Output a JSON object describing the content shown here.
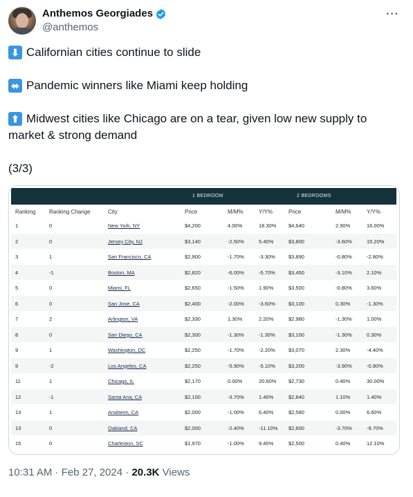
{
  "author": {
    "name": "Anthemos Georgiades",
    "handle": "@anthemos",
    "verified_color": "#1d9bf0"
  },
  "more_label": "···",
  "tweet": {
    "lines": [
      {
        "icon": "down-arrow-emoji",
        "glyph": "⬇",
        "text": "Californian cities continue to slide"
      },
      {
        "icon": "left-right-arrow-emoji",
        "glyph": "⬌",
        "text": "Pandemic winners like Miami keep holding"
      },
      {
        "icon": "up-arrow-emoji",
        "glyph": "⬆",
        "text": "Midwest cities like Chicago are on a tear, given low new supply to"
      }
    ],
    "continuation": "market & strong demand",
    "thread_marker": "(3/3)"
  },
  "table": {
    "banner_color": "#14333a",
    "group_1": "1 BEDROOM",
    "group_2": "2 BEDROOMS",
    "headers": [
      "Ranking",
      "Ranking Change",
      "City",
      "Price",
      "M/M%",
      "Y/Y%",
      "Price",
      "M/M%",
      "Y/Y%"
    ],
    "rows": [
      [
        "1",
        "0",
        "New York, NY",
        "$4,200",
        "4.00%",
        "18.30%",
        "$4,640",
        "2.90%",
        "16.00%"
      ],
      [
        "2",
        "0",
        "Jersey City, NJ",
        "$3,140",
        "-2.50%",
        "5.40%",
        "$3,800",
        "-3.60%",
        "15.20%"
      ],
      [
        "3",
        "1",
        "San Francisco, CA",
        "$2,900",
        "-1.70%",
        "-3.30%",
        "$3,890",
        "-0.80%",
        "-2.80%"
      ],
      [
        "4",
        "-1",
        "Boston, MA",
        "$2,820",
        "-6.00%",
        "-5.70%",
        "$3,450",
        "-3.10%",
        "2.10%"
      ],
      [
        "5",
        "0",
        "Miami, FL",
        "$2,650",
        "-1.50%",
        "1.90%",
        "$3,500",
        "-0.80%",
        "3.60%"
      ],
      [
        "6",
        "0",
        "San Jose, CA",
        "$2,400",
        "-2.00%",
        "-3.60%",
        "$3,100",
        "0.30%",
        "-1.30%"
      ],
      [
        "7",
        "2",
        "Arlington, VA",
        "$2,330",
        "1.30%",
        "2.20%",
        "$2,980",
        "-1.30%",
        "1.00%"
      ],
      [
        "8",
        "0",
        "San Diego, CA",
        "$2,300",
        "-1.30%",
        "-1.30%",
        "$3,100",
        "-1.30%",
        "0.30%"
      ],
      [
        "9",
        "1",
        "Washington, DC",
        "$2,250",
        "-1.70%",
        "-2.20%",
        "$3,070",
        "2.30%",
        "-4.40%"
      ],
      [
        "9",
        "-2",
        "Los Angeles, CA",
        "$2,250",
        "-5.90%",
        "-5.10%",
        "$3,200",
        "-3.90%",
        "-0.90%"
      ],
      [
        "11",
        "1",
        "Chicago, IL",
        "$2,170",
        "0.00%",
        "20.60%",
        "$2,730",
        "0.40%",
        "30.00%"
      ],
      [
        "12",
        "-1",
        "Santa Ana, CA",
        "$2,100",
        "-3.70%",
        "1.40%",
        "$2,840",
        "1.10%",
        "1.40%"
      ],
      [
        "13",
        "1",
        "Anaheim, CA",
        "$2,000",
        "-1.00%",
        "6.40%",
        "$2,580",
        "0.00%",
        "6.60%"
      ],
      [
        "13",
        "0",
        "Oakland, CA",
        "$2,000",
        "-2.40%",
        "-11.10%",
        "$2,600",
        "-3.70%",
        "-9.70%"
      ],
      [
        "15",
        "0",
        "Charleston, SC",
        "$1,970",
        "-1.00%",
        "9.40%",
        "$2,500",
        "0.40%",
        "12.10%"
      ]
    ]
  },
  "meta": {
    "timestamp": "10:31 AM · Feb 27, 2024",
    "separator": "·",
    "views_count": "20.3K",
    "views_label": "Views"
  }
}
